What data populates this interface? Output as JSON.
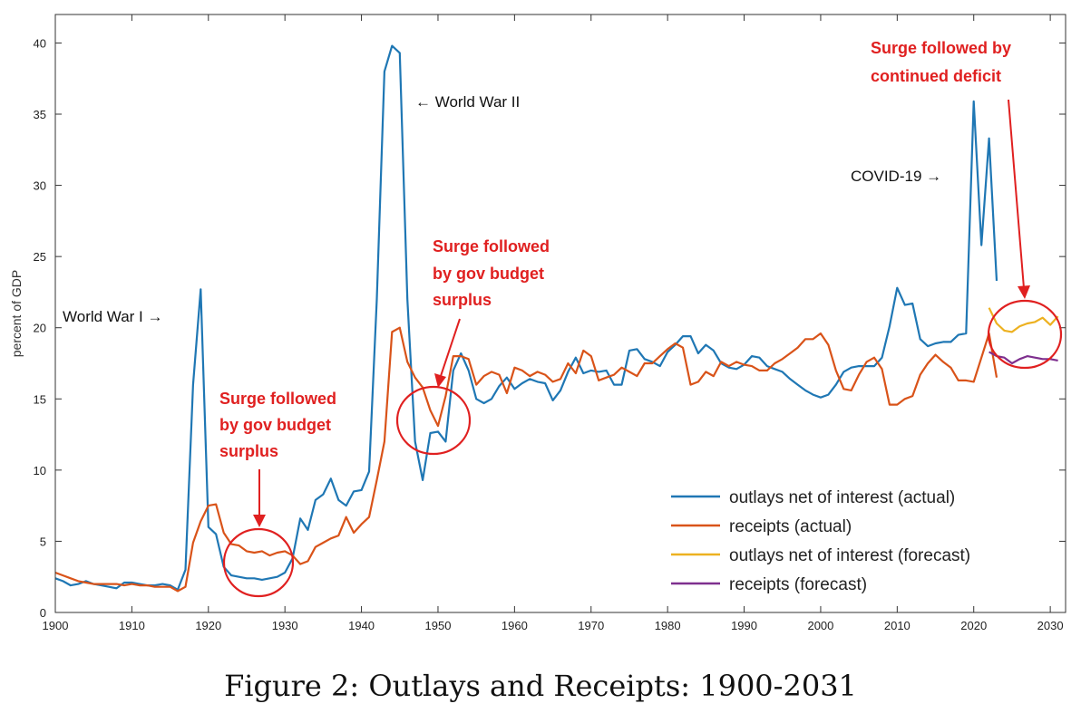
{
  "figure": {
    "caption": "Figure 2: Outlays and Receipts: 1900-2031"
  },
  "chart_data": {
    "type": "line",
    "ylabel": "percent of GDP",
    "xlim": [
      1900,
      2032
    ],
    "ylim": [
      0,
      42
    ],
    "x_ticks": [
      1900,
      1910,
      1920,
      1930,
      1940,
      1950,
      1960,
      1970,
      1980,
      1990,
      2000,
      2010,
      2020,
      2030
    ],
    "y_ticks": [
      0,
      5,
      10,
      15,
      20,
      25,
      30,
      35,
      40
    ],
    "legend_position": "bottom-right",
    "series": [
      {
        "name": "outlays net of interest (actual)",
        "color": "#1f77b4",
        "points": [
          [
            1900,
            2.4
          ],
          [
            1901,
            2.2
          ],
          [
            1902,
            1.9
          ],
          [
            1903,
            2.0
          ],
          [
            1904,
            2.2
          ],
          [
            1905,
            2.0
          ],
          [
            1906,
            1.9
          ],
          [
            1907,
            1.8
          ],
          [
            1908,
            1.7
          ],
          [
            1909,
            2.1
          ],
          [
            1910,
            2.1
          ],
          [
            1911,
            2.0
          ],
          [
            1912,
            1.9
          ],
          [
            1913,
            1.9
          ],
          [
            1914,
            2.0
          ],
          [
            1915,
            1.9
          ],
          [
            1916,
            1.6
          ],
          [
            1917,
            3.0
          ],
          [
            1918,
            16.0
          ],
          [
            1919,
            22.7
          ],
          [
            1920,
            6.0
          ],
          [
            1921,
            5.5
          ],
          [
            1922,
            3.2
          ],
          [
            1923,
            2.6
          ],
          [
            1924,
            2.5
          ],
          [
            1925,
            2.4
          ],
          [
            1926,
            2.4
          ],
          [
            1927,
            2.3
          ],
          [
            1928,
            2.4
          ],
          [
            1929,
            2.5
          ],
          [
            1930,
            2.8
          ],
          [
            1931,
            3.8
          ],
          [
            1932,
            6.6
          ],
          [
            1933,
            5.8
          ],
          [
            1934,
            7.9
          ],
          [
            1935,
            8.3
          ],
          [
            1936,
            9.4
          ],
          [
            1937,
            7.9
          ],
          [
            1938,
            7.5
          ],
          [
            1939,
            8.5
          ],
          [
            1940,
            8.6
          ],
          [
            1941,
            9.9
          ],
          [
            1942,
            22.0
          ],
          [
            1943,
            38.0
          ],
          [
            1944,
            39.8
          ],
          [
            1945,
            39.3
          ],
          [
            1946,
            22.0
          ],
          [
            1947,
            12.0
          ],
          [
            1948,
            9.3
          ],
          [
            1949,
            12.6
          ],
          [
            1950,
            12.7
          ],
          [
            1951,
            12.0
          ],
          [
            1952,
            17.0
          ],
          [
            1953,
            18.2
          ],
          [
            1954,
            17.0
          ],
          [
            1955,
            15.0
          ],
          [
            1956,
            14.7
          ],
          [
            1957,
            15.0
          ],
          [
            1958,
            15.9
          ],
          [
            1959,
            16.5
          ],
          [
            1960,
            15.7
          ],
          [
            1961,
            16.1
          ],
          [
            1962,
            16.4
          ],
          [
            1963,
            16.2
          ],
          [
            1964,
            16.1
          ],
          [
            1965,
            14.9
          ],
          [
            1966,
            15.6
          ],
          [
            1967,
            16.9
          ],
          [
            1968,
            17.9
          ],
          [
            1969,
            16.8
          ],
          [
            1970,
            17.0
          ],
          [
            1971,
            16.9
          ],
          [
            1972,
            17.0
          ],
          [
            1973,
            16.0
          ],
          [
            1974,
            16.0
          ],
          [
            1975,
            18.4
          ],
          [
            1976,
            18.5
          ],
          [
            1977,
            17.8
          ],
          [
            1978,
            17.6
          ],
          [
            1979,
            17.3
          ],
          [
            1980,
            18.3
          ],
          [
            1981,
            18.8
          ],
          [
            1982,
            19.4
          ],
          [
            1983,
            19.4
          ],
          [
            1984,
            18.2
          ],
          [
            1985,
            18.8
          ],
          [
            1986,
            18.4
          ],
          [
            1987,
            17.5
          ],
          [
            1988,
            17.2
          ],
          [
            1989,
            17.1
          ],
          [
            1990,
            17.4
          ],
          [
            1991,
            18.0
          ],
          [
            1992,
            17.9
          ],
          [
            1993,
            17.3
          ],
          [
            1994,
            17.1
          ],
          [
            1995,
            16.9
          ],
          [
            1996,
            16.4
          ],
          [
            1997,
            16.0
          ],
          [
            1998,
            15.6
          ],
          [
            1999,
            15.3
          ],
          [
            2000,
            15.1
          ],
          [
            2001,
            15.3
          ],
          [
            2002,
            16.0
          ],
          [
            2003,
            16.9
          ],
          [
            2004,
            17.2
          ],
          [
            2005,
            17.3
          ],
          [
            2006,
            17.3
          ],
          [
            2007,
            17.3
          ],
          [
            2008,
            17.9
          ],
          [
            2009,
            20.1
          ],
          [
            2010,
            22.8
          ],
          [
            2011,
            21.6
          ],
          [
            2012,
            21.7
          ],
          [
            2013,
            19.2
          ],
          [
            2014,
            18.7
          ],
          [
            2015,
            18.9
          ],
          [
            2016,
            19.0
          ],
          [
            2017,
            19.0
          ],
          [
            2018,
            19.5
          ],
          [
            2019,
            19.6
          ],
          [
            2020,
            35.9
          ],
          [
            2021,
            25.8
          ],
          [
            2022,
            33.3
          ],
          [
            2023,
            23.3
          ]
        ]
      },
      {
        "name": "receipts (actual)",
        "color": "#d95319",
        "points": [
          [
            1900,
            2.8
          ],
          [
            1901,
            2.6
          ],
          [
            1902,
            2.4
          ],
          [
            1903,
            2.2
          ],
          [
            1904,
            2.1
          ],
          [
            1905,
            2.0
          ],
          [
            1906,
            2.0
          ],
          [
            1907,
            2.0
          ],
          [
            1908,
            2.0
          ],
          [
            1909,
            1.9
          ],
          [
            1910,
            2.0
          ],
          [
            1911,
            1.9
          ],
          [
            1912,
            1.9
          ],
          [
            1913,
            1.8
          ],
          [
            1914,
            1.8
          ],
          [
            1915,
            1.8
          ],
          [
            1916,
            1.5
          ],
          [
            1917,
            1.8
          ],
          [
            1918,
            4.9
          ],
          [
            1919,
            6.4
          ],
          [
            1920,
            7.5
          ],
          [
            1921,
            7.6
          ],
          [
            1922,
            5.6
          ],
          [
            1923,
            4.8
          ],
          [
            1924,
            4.7
          ],
          [
            1925,
            4.3
          ],
          [
            1926,
            4.2
          ],
          [
            1927,
            4.3
          ],
          [
            1928,
            4.0
          ],
          [
            1929,
            4.2
          ],
          [
            1930,
            4.3
          ],
          [
            1931,
            4.0
          ],
          [
            1932,
            3.4
          ],
          [
            1933,
            3.6
          ],
          [
            1934,
            4.6
          ],
          [
            1935,
            4.9
          ],
          [
            1936,
            5.2
          ],
          [
            1937,
            5.4
          ],
          [
            1938,
            6.7
          ],
          [
            1939,
            5.6
          ],
          [
            1940,
            6.2
          ],
          [
            1941,
            6.7
          ],
          [
            1942,
            9.3
          ],
          [
            1943,
            12.0
          ],
          [
            1944,
            19.7
          ],
          [
            1945,
            20.0
          ],
          [
            1946,
            17.6
          ],
          [
            1947,
            16.5
          ],
          [
            1948,
            15.8
          ],
          [
            1949,
            14.2
          ],
          [
            1950,
            13.1
          ],
          [
            1951,
            15.2
          ],
          [
            1952,
            18.0
          ],
          [
            1953,
            18.0
          ],
          [
            1954,
            17.8
          ],
          [
            1955,
            16.0
          ],
          [
            1956,
            16.6
          ],
          [
            1957,
            16.9
          ],
          [
            1958,
            16.7
          ],
          [
            1959,
            15.4
          ],
          [
            1960,
            17.2
          ],
          [
            1961,
            17.0
          ],
          [
            1962,
            16.6
          ],
          [
            1963,
            16.9
          ],
          [
            1964,
            16.7
          ],
          [
            1965,
            16.2
          ],
          [
            1966,
            16.4
          ],
          [
            1967,
            17.5
          ],
          [
            1968,
            16.8
          ],
          [
            1969,
            18.4
          ],
          [
            1970,
            18.0
          ],
          [
            1971,
            16.3
          ],
          [
            1972,
            16.5
          ],
          [
            1973,
            16.7
          ],
          [
            1974,
            17.2
          ],
          [
            1975,
            16.9
          ],
          [
            1976,
            16.6
          ],
          [
            1977,
            17.5
          ],
          [
            1978,
            17.5
          ],
          [
            1979,
            18.0
          ],
          [
            1980,
            18.5
          ],
          [
            1981,
            18.9
          ],
          [
            1982,
            18.6
          ],
          [
            1983,
            16.0
          ],
          [
            1984,
            16.2
          ],
          [
            1985,
            16.9
          ],
          [
            1986,
            16.6
          ],
          [
            1987,
            17.6
          ],
          [
            1988,
            17.3
          ],
          [
            1989,
            17.6
          ],
          [
            1990,
            17.4
          ],
          [
            1991,
            17.3
          ],
          [
            1992,
            17.0
          ],
          [
            1993,
            17.0
          ],
          [
            1994,
            17.5
          ],
          [
            1995,
            17.8
          ],
          [
            1996,
            18.2
          ],
          [
            1997,
            18.6
          ],
          [
            1998,
            19.2
          ],
          [
            1999,
            19.2
          ],
          [
            2000,
            19.6
          ],
          [
            2001,
            18.8
          ],
          [
            2002,
            17.0
          ],
          [
            2003,
            15.7
          ],
          [
            2004,
            15.6
          ],
          [
            2005,
            16.7
          ],
          [
            2006,
            17.6
          ],
          [
            2007,
            17.9
          ],
          [
            2008,
            17.1
          ],
          [
            2009,
            14.6
          ],
          [
            2010,
            14.6
          ],
          [
            2011,
            15.0
          ],
          [
            2012,
            15.2
          ],
          [
            2013,
            16.7
          ],
          [
            2014,
            17.5
          ],
          [
            2015,
            18.1
          ],
          [
            2016,
            17.6
          ],
          [
            2017,
            17.2
          ],
          [
            2018,
            16.3
          ],
          [
            2019,
            16.3
          ],
          [
            2020,
            16.2
          ],
          [
            2021,
            17.9
          ],
          [
            2022,
            19.6
          ],
          [
            2023,
            16.5
          ]
        ]
      },
      {
        "name": "outlays net of interest (forecast)",
        "color": "#edb120",
        "points": [
          [
            2022,
            21.4
          ],
          [
            2023,
            20.3
          ],
          [
            2024,
            19.8
          ],
          [
            2025,
            19.7
          ],
          [
            2026,
            20.1
          ],
          [
            2027,
            20.3
          ],
          [
            2028,
            20.4
          ],
          [
            2029,
            20.7
          ],
          [
            2030,
            20.2
          ],
          [
            2031,
            20.8
          ]
        ]
      },
      {
        "name": "receipts (forecast)",
        "color": "#7e2f8e",
        "points": [
          [
            2022,
            18.3
          ],
          [
            2023,
            18.0
          ],
          [
            2024,
            17.9
          ],
          [
            2025,
            17.5
          ],
          [
            2026,
            17.8
          ],
          [
            2027,
            18.0
          ],
          [
            2028,
            17.9
          ],
          [
            2029,
            17.8
          ],
          [
            2030,
            17.8
          ],
          [
            2031,
            17.7
          ]
        ]
      }
    ],
    "annotations": {
      "ww1": "World War I →",
      "ww2": "← World War II",
      "covid": "COVID-19 →",
      "surge1": [
        "Surge followed",
        "by gov budget",
        "surplus"
      ],
      "surge2": [
        "Surge followed",
        "by gov budget",
        "surplus"
      ],
      "surge3": [
        "Surge followed by",
        "continued deficit"
      ]
    }
  }
}
